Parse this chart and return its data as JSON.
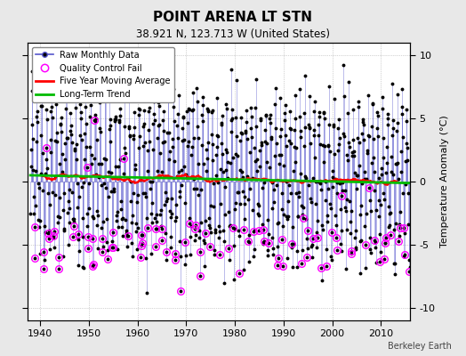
{
  "title": "POINT ARENA LT STN",
  "subtitle": "38.921 N, 123.713 W (United States)",
  "ylabel": "Temperature Anomaly (°C)",
  "credit": "Berkeley Earth",
  "year_start": 1938,
  "year_end": 2015,
  "ylim": [
    -11,
    11
  ],
  "yticks": [
    -10,
    -5,
    0,
    5,
    10
  ],
  "bg_color": "#e8e8e8",
  "plot_bg_color": "#ffffff",
  "raw_line_color": "#5555cc",
  "raw_line_alpha": 0.55,
  "raw_marker_color": "#000000",
  "qc_fail_color": "#ff00ff",
  "moving_avg_color": "#ff0000",
  "trend_color": "#00bb00",
  "seed": 12345,
  "seasonal_amplitude": 5.5,
  "noise_std": 1.4,
  "trend_slope": -0.008,
  "trend_intercept": 0.5,
  "qc_rate_neg": 0.35,
  "qc_neg_threshold": -3.5
}
